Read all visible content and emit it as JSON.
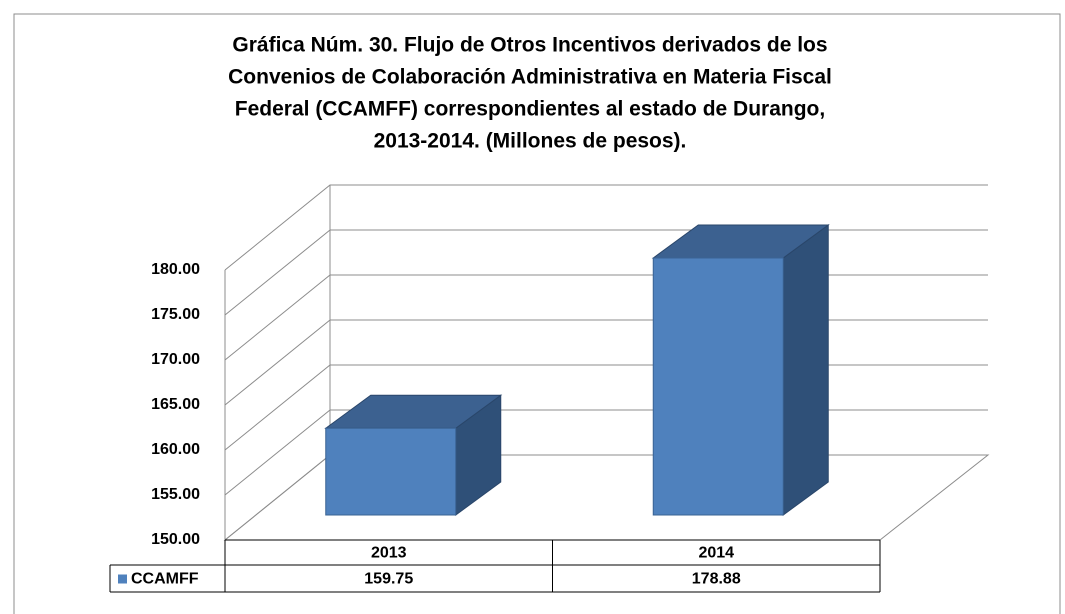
{
  "chart_data": {
    "type": "bar3d",
    "title": [
      "Gráfica Núm. 30. Flujo de Otros Incentivos derivados de los",
      "Convenios de Colaboración Administrativa en Materia Fiscal",
      "Federal (CCAMFF) correspondientes al estado de Durango,",
      "2013-2014. (Millones de pesos)."
    ],
    "categories": [
      "2013",
      "2014"
    ],
    "series": [
      {
        "name": "CCAMFF",
        "color": "#4f81bd",
        "values": [
          159.75,
          178.88
        ]
      }
    ],
    "ylim": [
      150,
      180
    ],
    "yticks": [
      {
        "value": 150,
        "label": "150.00"
      },
      {
        "value": 155,
        "label": "155.00"
      },
      {
        "value": 160,
        "label": "160.00"
      },
      {
        "value": 165,
        "label": "165.00"
      },
      {
        "value": 170,
        "label": "170.00"
      },
      {
        "value": 175,
        "label": "175.00"
      },
      {
        "value": 180,
        "label": "180.00"
      }
    ],
    "grid": true,
    "data_table": true
  }
}
